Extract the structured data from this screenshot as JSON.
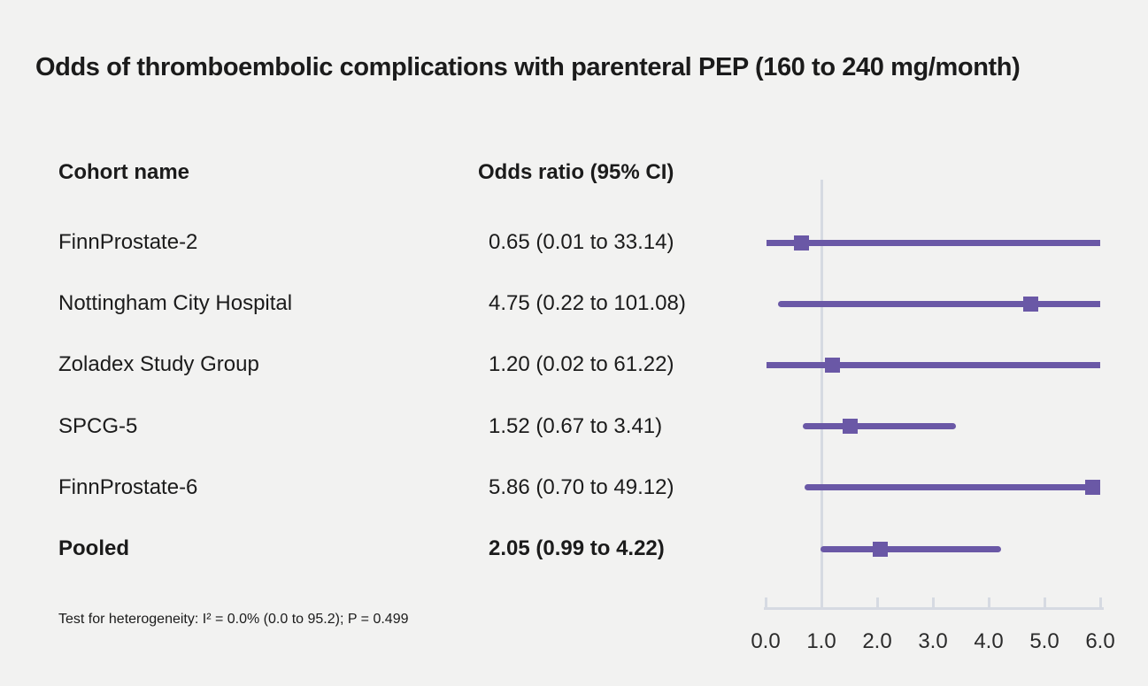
{
  "title": "Odds of thromboembolic complications with parenteral PEP (160 to 240 mg/month)",
  "columns": {
    "cohort": "Cohort name",
    "odds": "Odds ratio (95% CI)"
  },
  "footnote": "Test for heterogeneity: I² = 0.0% (0.0 to 95.2); P = 0.499",
  "colors": {
    "background": "#f2f2f1",
    "marker": "#6a58a6",
    "axis_line": "#d6dae2",
    "text": "#1b1b1b"
  },
  "chart_data": {
    "type": "forest",
    "title": "Odds of thromboembolic complications with parenteral PEP (160 to 240 mg/month)",
    "xlabel": "Odds ratio",
    "xlim": [
      0.0,
      6.0
    ],
    "x_tick_step": 1.0,
    "x_ticks": [
      "0.0",
      "1.0",
      "2.0",
      "3.0",
      "4.0",
      "5.0",
      "6.0"
    ],
    "reference_line_x": 1.0,
    "grid": false,
    "legend": "none",
    "rows": [
      {
        "cohort": "FinnProstate-2",
        "estimate_label": "0.65 (0.01 to 33.14)",
        "odds_ratio": 0.65,
        "ci_lower": 0.01,
        "ci_upper": 33.14,
        "pooled": false
      },
      {
        "cohort": "Nottingham City Hospital",
        "estimate_label": "4.75 (0.22 to 101.08)",
        "odds_ratio": 4.75,
        "ci_lower": 0.22,
        "ci_upper": 101.08,
        "pooled": false
      },
      {
        "cohort": "Zoladex Study Group",
        "estimate_label": "1.20 (0.02 to 61.22)",
        "odds_ratio": 1.2,
        "ci_lower": 0.02,
        "ci_upper": 61.22,
        "pooled": false
      },
      {
        "cohort": "SPCG-5",
        "estimate_label": "1.52 (0.67 to 3.41)",
        "odds_ratio": 1.52,
        "ci_lower": 0.67,
        "ci_upper": 3.41,
        "pooled": false
      },
      {
        "cohort": "FinnProstate-6",
        "estimate_label": "5.86 (0.70 to 49.12)",
        "odds_ratio": 5.86,
        "ci_lower": 0.7,
        "ci_upper": 49.12,
        "pooled": false
      },
      {
        "cohort": "Pooled",
        "estimate_label": "2.05 (0.99 to 4.22)",
        "odds_ratio": 2.05,
        "ci_lower": 0.99,
        "ci_upper": 4.22,
        "pooled": true
      }
    ]
  }
}
